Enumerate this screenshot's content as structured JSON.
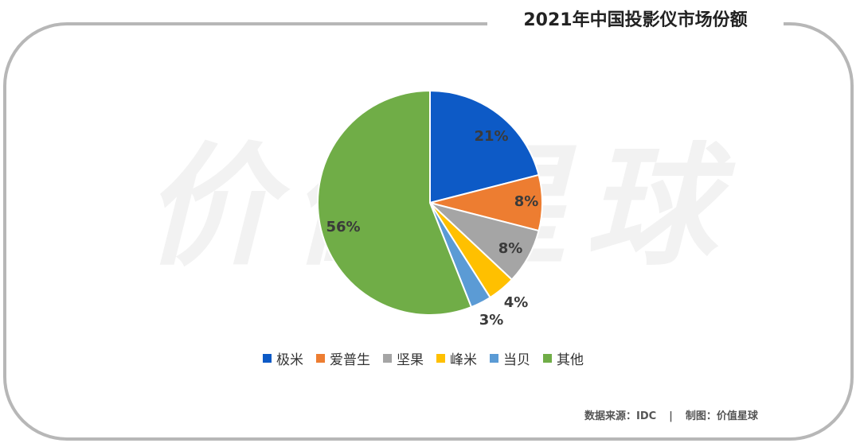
{
  "chart_data": {
    "type": "pie",
    "title": "2021年中国投影仪市场份额",
    "categories": [
      "极米",
      "爱普生",
      "坚果",
      "峰米",
      "当贝",
      "其他"
    ],
    "values": [
      21,
      8,
      8,
      4,
      3,
      56
    ],
    "value_labels": [
      "21%",
      "8%",
      "8%",
      "4%",
      "3%",
      "56%"
    ],
    "colors": [
      "#0d5ac6",
      "#ed7d31",
      "#a5a5a5",
      "#ffc000",
      "#5b9bd5",
      "#70ad47"
    ],
    "legend_position": "bottom"
  },
  "watermark": "价值星球",
  "footer": {
    "source": "数据来源：IDC",
    "separator": "|",
    "credit": "制图：价值星球"
  }
}
